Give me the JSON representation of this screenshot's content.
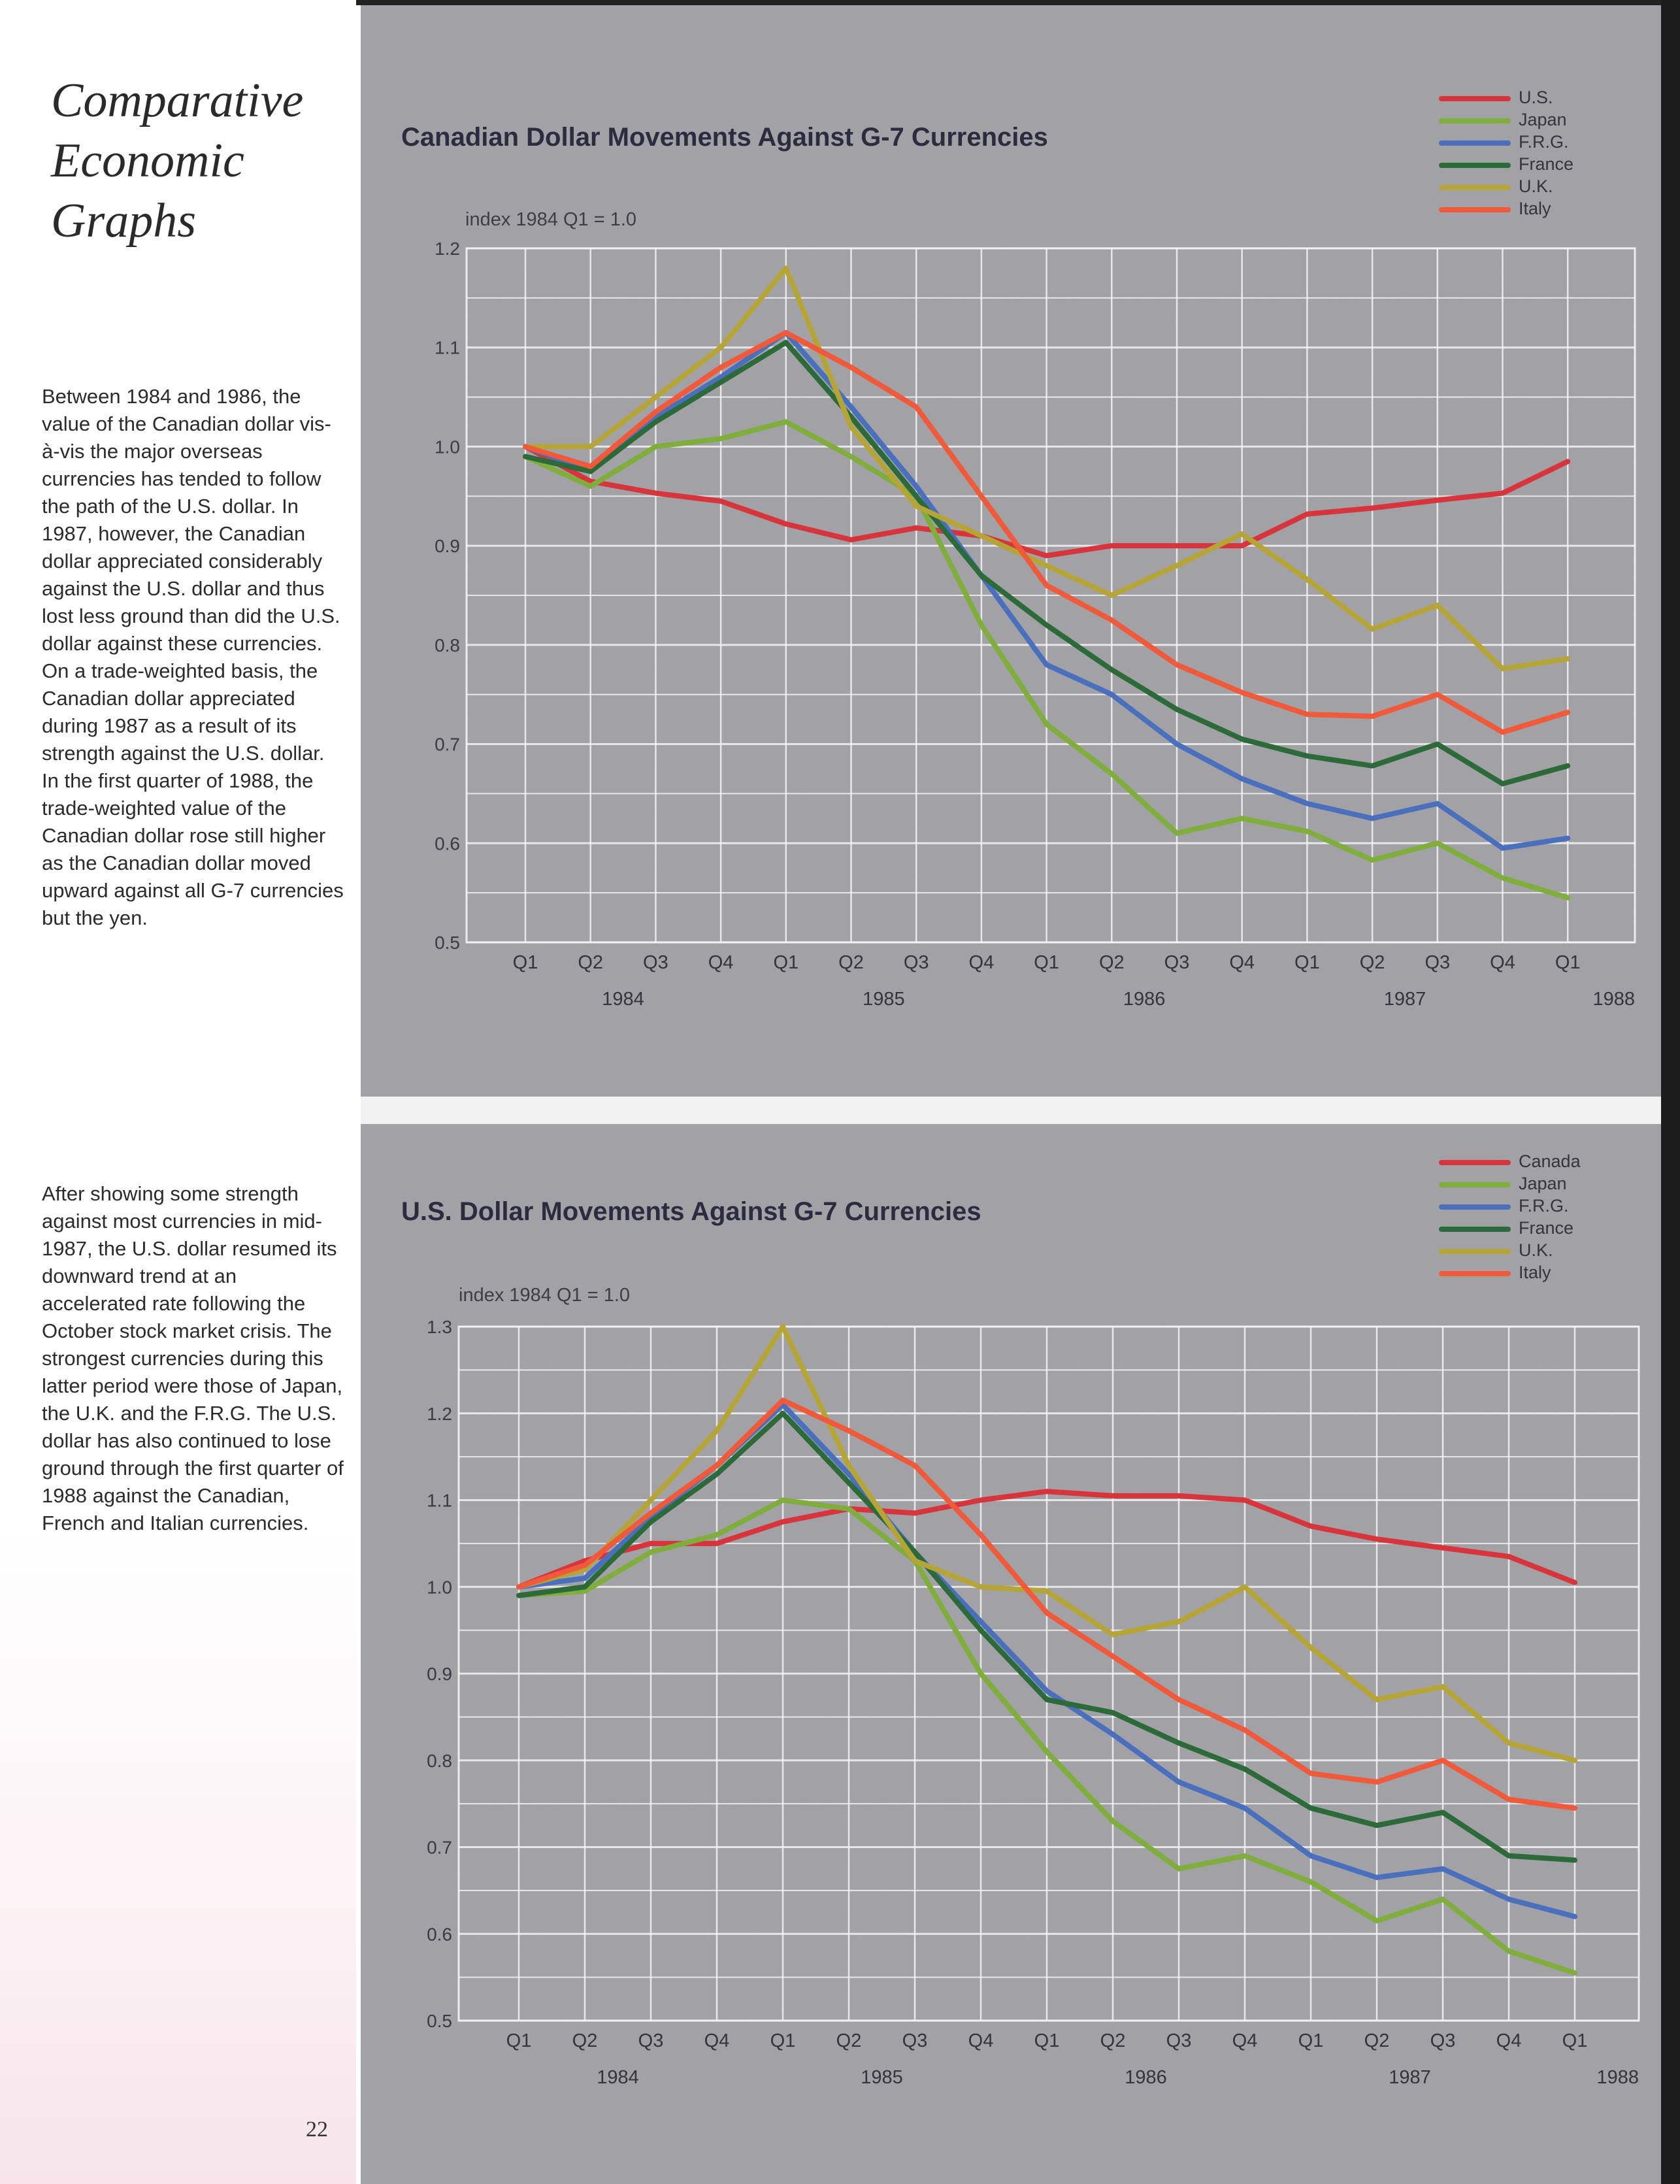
{
  "page": {
    "title": "Comparative Economic Graphs",
    "page_number": "22",
    "paragraphs": [
      "Between 1984 and 1986, the value of the Canadian dollar vis-à-vis the major overseas currencies has tended to follow the path of the U.S. dollar. In 1987, however, the Canadian dollar appreciated considerably against the U.S. dollar and thus lost less ground than did the U.S. dollar against these currencies. On a trade-weighted basis, the Canadian dollar appreciated during 1987 as a result of its strength against the U.S. dollar. In the first quarter of 1988, the trade-weighted value of the Canadian dollar rose still higher as the Canadian dollar moved upward against all G-7 currencies but the yen.",
      "After showing some strength against most currencies in mid-1987, the U.S. dollar resumed its downward trend at an accelerated rate following the October stock market crisis. The strongest currencies during this latter period were those of Japan, the U.K. and the F.R.G. The U.S. dollar has also continued to lose ground through the first quarter of 1988 against the Canadian, French and Italian currencies."
    ]
  },
  "chart_data": [
    {
      "type": "line",
      "title": "Canadian Dollar Movements Against G-7 Currencies",
      "ylabel": "index 1984 Q1 = 1.0",
      "ylim": [
        0.5,
        1.2
      ],
      "yticks": [
        "0.5",
        "0.6",
        "0.7",
        "0.8",
        "0.9",
        "1.0",
        "1.1",
        "1.2"
      ],
      "quarters": [
        "Q1",
        "Q2",
        "Q3",
        "Q4",
        "Q1",
        "Q2",
        "Q3",
        "Q4",
        "Q1",
        "Q2",
        "Q3",
        "Q4",
        "Q1",
        "Q2",
        "Q3",
        "Q4",
        "Q1"
      ],
      "years": [
        "1984",
        "1985",
        "1986",
        "1987",
        "1988"
      ],
      "grid": true,
      "legend_position": "top-right",
      "series": [
        {
          "name": "U.S.",
          "color": "#d8343c",
          "values": [
            1.0,
            0.965,
            0.953,
            0.945,
            0.922,
            0.906,
            0.918,
            0.91,
            0.89,
            0.9,
            0.9,
            0.9,
            0.932,
            0.938,
            0.946,
            0.953,
            0.985
          ]
        },
        {
          "name": "Japan",
          "color": "#7fae3c",
          "values": [
            0.99,
            0.96,
            1.0,
            1.008,
            1.025,
            0.99,
            0.95,
            0.82,
            0.72,
            0.67,
            0.61,
            0.625,
            0.612,
            0.583,
            0.6,
            0.565,
            0.545
          ]
        },
        {
          "name": "F.R.G.",
          "color": "#4a6fbd",
          "values": [
            1.0,
            0.975,
            1.03,
            1.07,
            1.115,
            1.04,
            0.96,
            0.87,
            0.78,
            0.75,
            0.7,
            0.665,
            0.64,
            0.625,
            0.64,
            0.595,
            0.605
          ]
        },
        {
          "name": "France",
          "color": "#2c6a3a",
          "values": [
            0.99,
            0.975,
            1.025,
            1.065,
            1.105,
            1.03,
            0.95,
            0.87,
            0.82,
            0.775,
            0.735,
            0.705,
            0.688,
            0.678,
            0.7,
            0.66,
            0.678
          ]
        },
        {
          "name": "U.K.",
          "color": "#b5a537",
          "values": [
            1.0,
            1.0,
            1.05,
            1.1,
            1.18,
            1.02,
            0.94,
            0.91,
            0.88,
            0.85,
            0.88,
            0.912,
            0.866,
            0.816,
            0.84,
            0.776,
            0.786
          ]
        },
        {
          "name": "Italy",
          "color": "#f0593a",
          "values": [
            1.0,
            0.98,
            1.035,
            1.08,
            1.115,
            1.08,
            1.04,
            0.95,
            0.86,
            0.825,
            0.78,
            0.752,
            0.73,
            0.728,
            0.75,
            0.712,
            0.732
          ]
        }
      ]
    },
    {
      "type": "line",
      "title": "U.S. Dollar Movements Against G-7 Currencies",
      "ylabel": "index 1984 Q1 = 1.0",
      "ylim": [
        0.5,
        1.3
      ],
      "yticks": [
        "0.5",
        "0.6",
        "0.7",
        "0.8",
        "0.9",
        "1.0",
        "1.1",
        "1.2",
        "1.3"
      ],
      "quarters": [
        "Q1",
        "Q2",
        "Q3",
        "Q4",
        "Q1",
        "Q2",
        "Q3",
        "Q4",
        "Q1",
        "Q2",
        "Q3",
        "Q4",
        "Q1",
        "Q2",
        "Q3",
        "Q4",
        "Q1"
      ],
      "years": [
        "1984",
        "1985",
        "1986",
        "1987",
        "1988"
      ],
      "grid": true,
      "legend_position": "top-right",
      "series": [
        {
          "name": "Canada",
          "color": "#d8343c",
          "values": [
            1.0,
            1.03,
            1.05,
            1.05,
            1.075,
            1.09,
            1.085,
            1.1,
            1.11,
            1.105,
            1.105,
            1.1,
            1.07,
            1.055,
            1.045,
            1.035,
            1.005
          ]
        },
        {
          "name": "Japan",
          "color": "#7fae3c",
          "values": [
            0.99,
            0.995,
            1.04,
            1.06,
            1.1,
            1.09,
            1.03,
            0.9,
            0.81,
            0.73,
            0.675,
            0.69,
            0.66,
            0.615,
            0.64,
            0.58,
            0.555
          ]
        },
        {
          "name": "F.R.G.",
          "color": "#4a6fbd",
          "values": [
            1.0,
            1.01,
            1.08,
            1.14,
            1.21,
            1.13,
            1.04,
            0.96,
            0.88,
            0.83,
            0.775,
            0.745,
            0.69,
            0.665,
            0.675,
            0.64,
            0.62
          ]
        },
        {
          "name": "France",
          "color": "#2c6a3a",
          "values": [
            0.99,
            1.0,
            1.075,
            1.13,
            1.2,
            1.12,
            1.04,
            0.95,
            0.87,
            0.855,
            0.82,
            0.79,
            0.745,
            0.725,
            0.74,
            0.69,
            0.685
          ]
        },
        {
          "name": "U.K.",
          "color": "#b5a537",
          "values": [
            1.0,
            1.02,
            1.1,
            1.18,
            1.3,
            1.14,
            1.03,
            1.0,
            0.995,
            0.945,
            0.96,
            1.0,
            0.93,
            0.87,
            0.885,
            0.82,
            0.8
          ]
        },
        {
          "name": "Italy",
          "color": "#f0593a",
          "values": [
            1.0,
            1.025,
            1.085,
            1.14,
            1.215,
            1.18,
            1.14,
            1.06,
            0.97,
            0.92,
            0.87,
            0.835,
            0.785,
            0.775,
            0.8,
            0.755,
            0.745
          ]
        }
      ]
    }
  ]
}
